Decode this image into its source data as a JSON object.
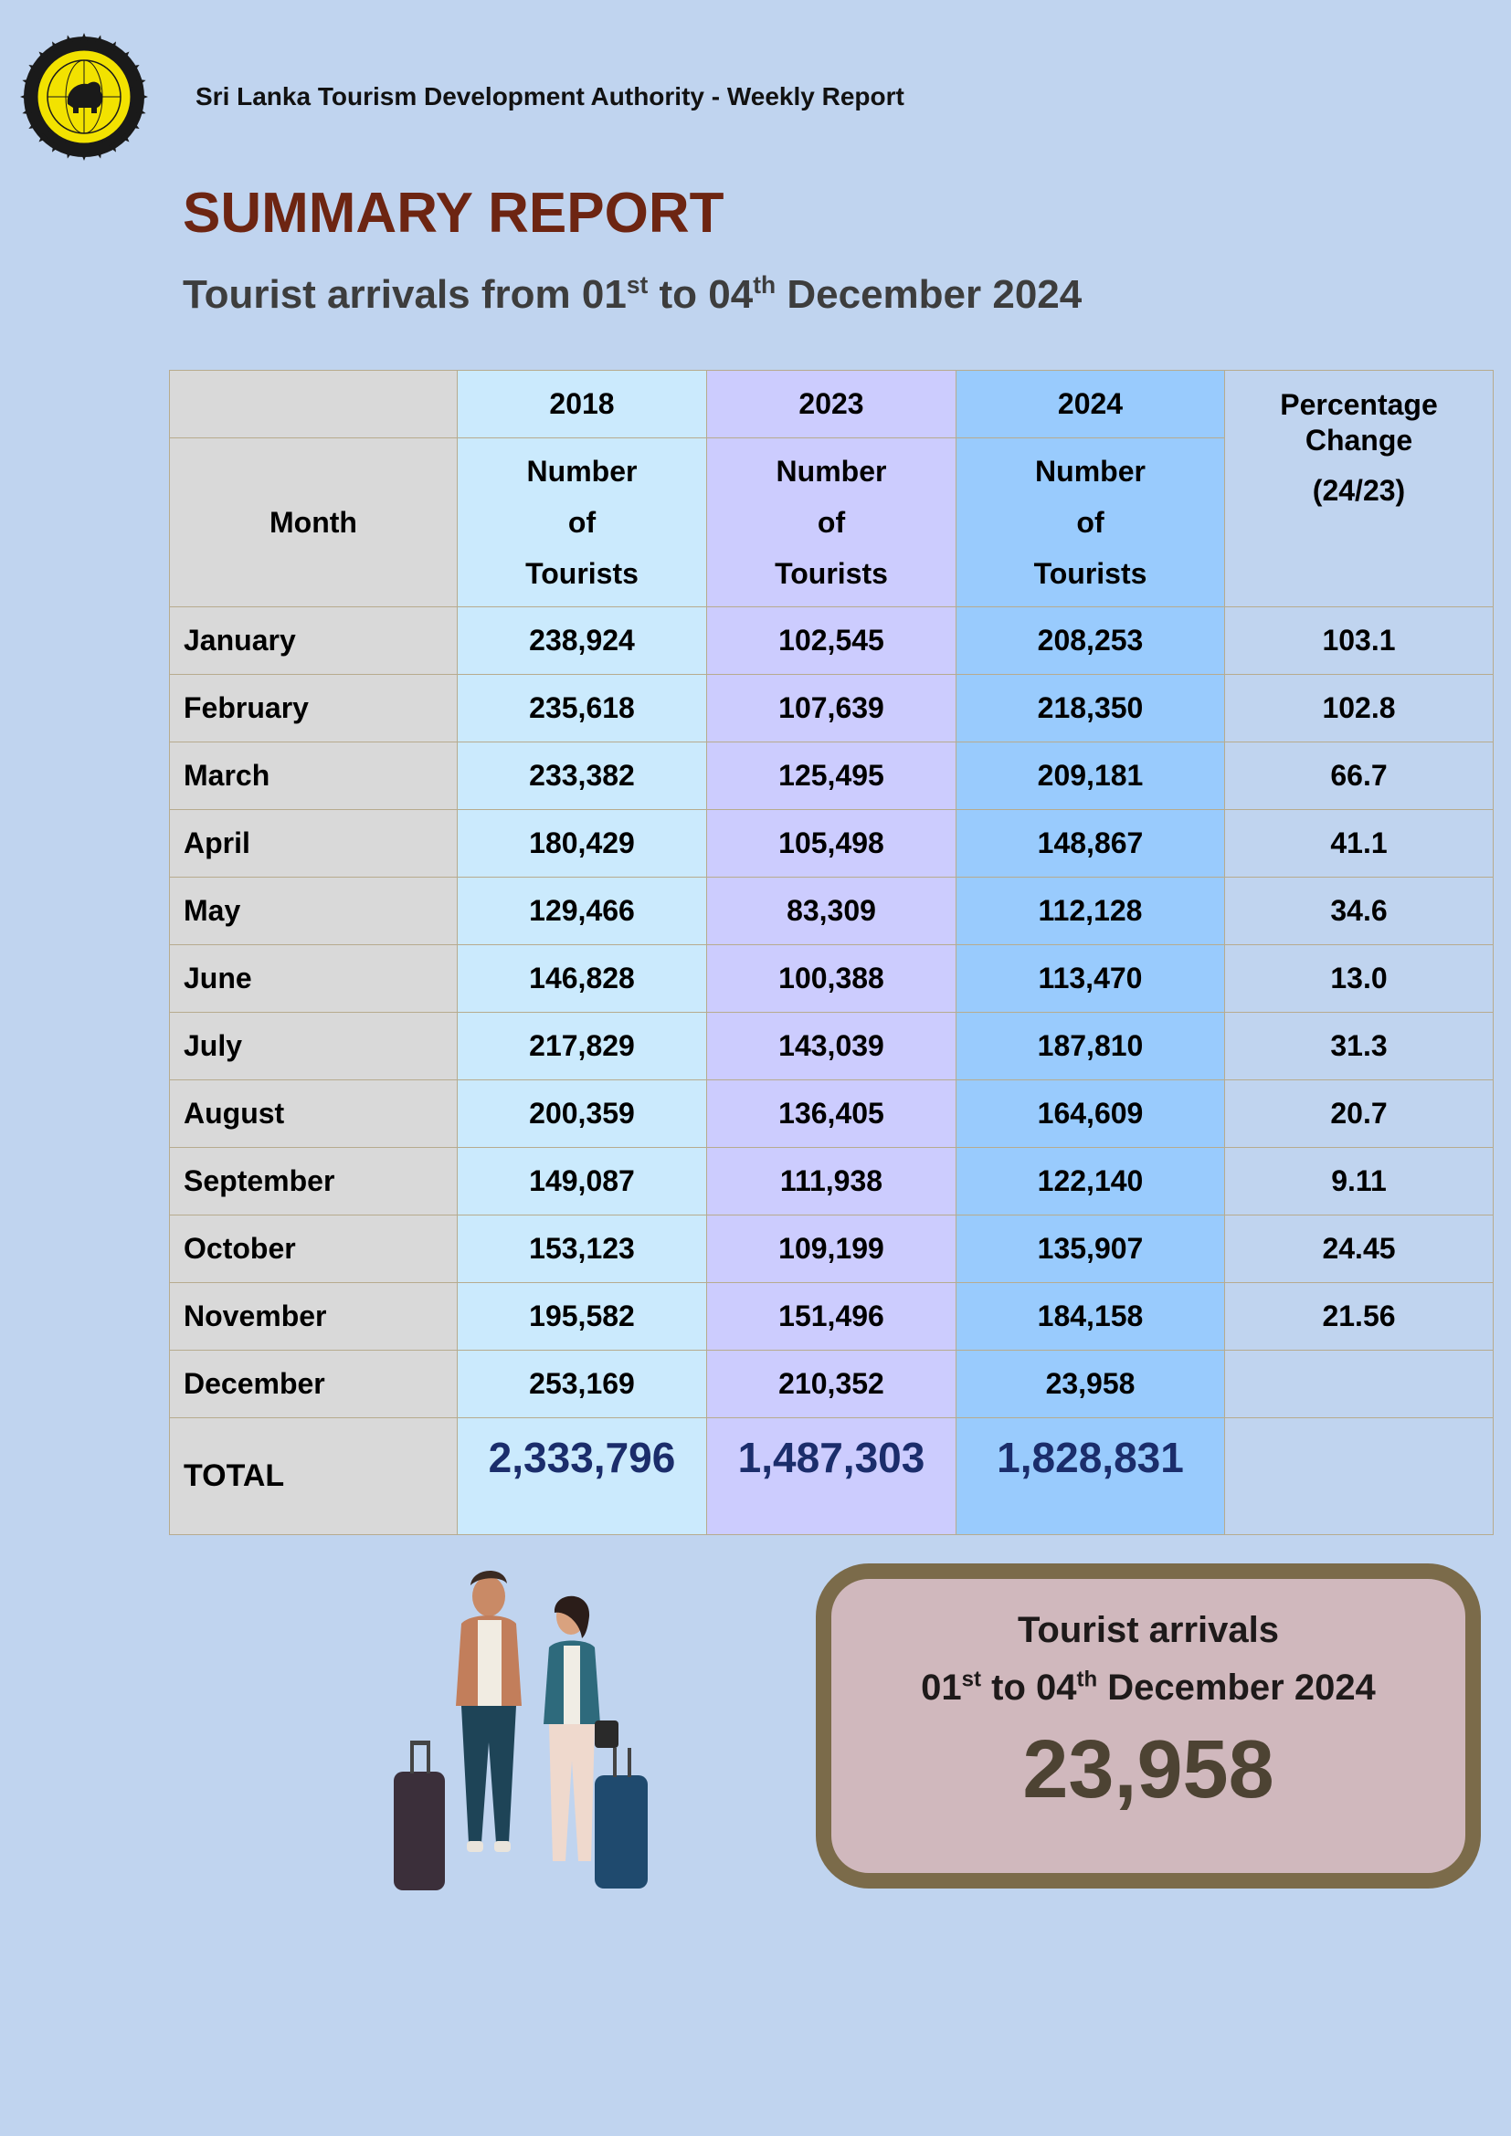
{
  "header": {
    "org": "Sri Lanka Tourism Development Authority - Weekly Report",
    "logo_icon": "lion-emblem-icon"
  },
  "title": "SUMMARY REPORT",
  "subtitle": {
    "prefix": "Tourist arrivals from 01",
    "sup1": "st",
    "mid": " to 04",
    "sup2": "th",
    "suffix": " December 2024"
  },
  "table": {
    "years": [
      "2018",
      "2023",
      "2024"
    ],
    "month_header": "Month",
    "number_header": [
      "Number",
      "of",
      "Tourists"
    ],
    "pct_header": "Percentage Change",
    "pct_sub": "(24/23)",
    "rows": [
      {
        "month": "January",
        "y2018": "238,924",
        "y2023": "102,545",
        "y2024": "208,253",
        "pct": "103.1"
      },
      {
        "month": "February",
        "y2018": "235,618",
        "y2023": "107,639",
        "y2024": "218,350",
        "pct": "102.8"
      },
      {
        "month": "March",
        "y2018": "233,382",
        "y2023": "125,495",
        "y2024": "209,181",
        "pct": "66.7"
      },
      {
        "month": "April",
        "y2018": "180,429",
        "y2023": "105,498",
        "y2024": "148,867",
        "pct": "41.1"
      },
      {
        "month": "May",
        "y2018": "129,466",
        "y2023": "83,309",
        "y2024": "112,128",
        "pct": "34.6"
      },
      {
        "month": "June",
        "y2018": "146,828",
        "y2023": "100,388",
        "y2024": "113,470",
        "pct": "13.0"
      },
      {
        "month": "July",
        "y2018": "217,829",
        "y2023": "143,039",
        "y2024": "187,810",
        "pct": "31.3"
      },
      {
        "month": "August",
        "y2018": "200,359",
        "y2023": "136,405",
        "y2024": "164,609",
        "pct": "20.7"
      },
      {
        "month": "September",
        "y2018": "149,087",
        "y2023": "111,938",
        "y2024": "122,140",
        "pct": "9.11"
      },
      {
        "month": "October",
        "y2018": "153,123",
        "y2023": "109,199",
        "y2024": "135,907",
        "pct": "24.45"
      },
      {
        "month": "November",
        "y2018": "195,582",
        "y2023": "151,496",
        "y2024": "184,158",
        "pct": "21.56"
      },
      {
        "month": "December",
        "y2018": "253,169",
        "y2023": "210,352",
        "y2024": "23,958",
        "pct": ""
      }
    ],
    "total": {
      "label": "TOTAL",
      "y2018": "2,333,796",
      "y2023": "1,487,303",
      "y2024": "1,828,831",
      "pct": ""
    }
  },
  "illustration_icon": "travelers-with-luggage-icon",
  "box": {
    "label": "Tourist arrivals",
    "date_prefix": "01",
    "sup1": "st",
    "date_mid": " to 04",
    "sup2": "th",
    "date_suffix": " December 2024",
    "value": "23,958"
  },
  "colors": {
    "background": "#c0d4ef",
    "title": "#6d2512",
    "col_2018": "#cbeafd",
    "col_2023": "#ccccfe",
    "col_2024": "#99cbfd",
    "month_col": "#d9d9d9",
    "box_border": "#7b6b4a",
    "box_fill": "#d0b8bd"
  }
}
